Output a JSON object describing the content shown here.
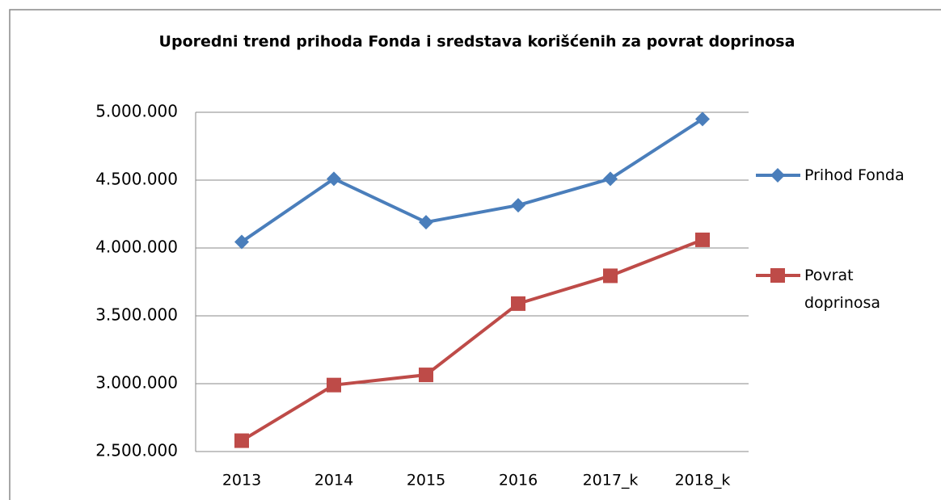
{
  "chart_data": {
    "type": "line",
    "title": "Uporedni trend prihoda Fonda i sredstava korišćenih za povrat doprinosa",
    "categories": [
      "2013",
      "2014",
      "2015",
      "2016",
      "2017_k",
      "2018_k"
    ],
    "series": [
      {
        "name": "Prihod Fonda",
        "color": "#4a7ebb",
        "marker": "diamond",
        "values": [
          4045000,
          4510000,
          4190000,
          4315000,
          4510000,
          4950000
        ]
      },
      {
        "name": "Povrat doprinosa",
        "color": "#be4b48",
        "marker": "square",
        "values": [
          2580000,
          2990000,
          3065000,
          3590000,
          3795000,
          4060000
        ]
      }
    ],
    "ylim": [
      2500000,
      5000000
    ],
    "yticks": [
      {
        "value": 2500000,
        "label": "2.500.000"
      },
      {
        "value": 3000000,
        "label": "3.000.000"
      },
      {
        "value": 3500000,
        "label": "3.500.000"
      },
      {
        "value": 4000000,
        "label": "4.000.000"
      },
      {
        "value": 4500000,
        "label": "4.500.000"
      },
      {
        "value": 5000000,
        "label": "5.000.000"
      }
    ],
    "grid": true,
    "legend": "right"
  }
}
